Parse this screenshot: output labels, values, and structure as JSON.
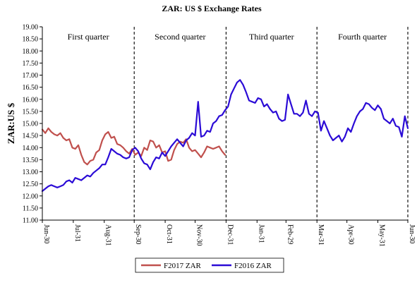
{
  "chart_data": {
    "type": "line",
    "title": "ZAR: US $ Exchange Rates",
    "ylabel": "ZAR:US $",
    "xlabel": "",
    "ylim": [
      11.0,
      19.0
    ],
    "ytick_step": 0.5,
    "x_axis": {
      "index_range": [
        0,
        365
      ],
      "ticks": [
        {
          "label": "Jun-30",
          "index": 0
        },
        {
          "label": "Jul-31",
          "index": 31
        },
        {
          "label": "Aug-31",
          "index": 62
        },
        {
          "label": "Sep-30",
          "index": 92
        },
        {
          "label": "Oct-31",
          "index": 123
        },
        {
          "label": "Nov-30",
          "index": 153
        },
        {
          "label": "Dec-31",
          "index": 184
        },
        {
          "label": "Jan-31",
          "index": 215
        },
        {
          "label": "Feb-29",
          "index": 244
        },
        {
          "label": "Mar-31",
          "index": 275
        },
        {
          "label": "Apr-30",
          "index": 305
        },
        {
          "label": "May-31",
          "index": 336
        },
        {
          "label": "Jun-30",
          "index": 366
        }
      ]
    },
    "quarters": [
      {
        "label": "First quarter",
        "start": 0,
        "end": 92
      },
      {
        "label": "Second quarter",
        "start": 92,
        "end": 184
      },
      {
        "label": "Third quarter",
        "start": 184,
        "end": 275
      },
      {
        "label": "Fourth quarter",
        "start": 275,
        "end": 366
      }
    ],
    "quarter_dividers": [
      92,
      184,
      275,
      366
    ],
    "grid": false,
    "legend_placement": "bottom-center",
    "series": [
      {
        "name": "F2017 ZAR",
        "color": "#c0504d",
        "x": [
          0,
          3,
          6,
          9,
          12,
          15,
          18,
          21,
          24,
          27,
          30,
          33,
          36,
          39,
          42,
          45,
          48,
          51,
          54,
          57,
          60,
          63,
          66,
          69,
          72,
          75,
          78,
          81,
          84,
          87,
          90,
          93,
          96,
          99,
          102,
          105,
          108,
          111,
          114,
          117,
          120,
          123,
          126,
          129,
          132,
          135,
          138,
          141,
          144,
          147,
          150,
          153,
          156,
          159,
          162,
          165,
          168,
          171,
          174,
          177,
          180,
          183
        ],
        "values": [
          14.75,
          14.6,
          14.8,
          14.65,
          14.55,
          14.5,
          14.6,
          14.4,
          14.3,
          14.35,
          14.0,
          13.95,
          14.1,
          13.7,
          13.4,
          13.3,
          13.45,
          13.5,
          13.8,
          13.9,
          14.3,
          14.55,
          14.65,
          14.4,
          14.45,
          14.15,
          14.1,
          14.0,
          13.85,
          13.75,
          13.95,
          13.7,
          13.8,
          13.65,
          14.0,
          13.9,
          14.3,
          14.25,
          14.0,
          14.1,
          13.8,
          13.85,
          13.45,
          13.5,
          13.9,
          14.15,
          14.25,
          14.2,
          14.35,
          14.0,
          13.85,
          13.9,
          13.75,
          13.6,
          13.8,
          14.05,
          14.0,
          13.95,
          14.0,
          14.05,
          13.85,
          13.7
        ]
      },
      {
        "name": "F2016 ZAR",
        "color": "#2b0bd6",
        "x": [
          0,
          3,
          6,
          9,
          12,
          15,
          18,
          21,
          24,
          27,
          30,
          33,
          36,
          39,
          42,
          45,
          48,
          51,
          54,
          57,
          60,
          63,
          66,
          69,
          72,
          75,
          78,
          81,
          84,
          87,
          90,
          93,
          96,
          99,
          102,
          105,
          108,
          111,
          114,
          117,
          120,
          123,
          126,
          129,
          132,
          135,
          138,
          141,
          144,
          147,
          150,
          153,
          156,
          159,
          162,
          165,
          168,
          171,
          174,
          177,
          180,
          183,
          186,
          189,
          192,
          195,
          198,
          201,
          204,
          207,
          210,
          213,
          216,
          219,
          222,
          225,
          228,
          231,
          234,
          237,
          240,
          243,
          246,
          249,
          252,
          255,
          258,
          261,
          264,
          267,
          270,
          273,
          276,
          279,
          282,
          285,
          288,
          291,
          294,
          297,
          300,
          303,
          306,
          309,
          312,
          315,
          318,
          321,
          324,
          327,
          330,
          333,
          336,
          339,
          342,
          345,
          348,
          351,
          354,
          357,
          360,
          363,
          366
        ],
        "values": [
          12.2,
          12.3,
          12.4,
          12.45,
          12.4,
          12.35,
          12.4,
          12.45,
          12.6,
          12.65,
          12.55,
          12.75,
          12.7,
          12.65,
          12.75,
          12.85,
          12.8,
          12.95,
          13.05,
          13.15,
          13.3,
          13.3,
          13.6,
          13.95,
          13.85,
          13.75,
          13.7,
          13.6,
          13.55,
          13.6,
          13.9,
          14.0,
          13.85,
          13.55,
          13.35,
          13.3,
          13.1,
          13.4,
          13.6,
          13.55,
          13.8,
          13.65,
          13.85,
          14.05,
          14.2,
          14.35,
          14.2,
          14.05,
          14.3,
          14.4,
          14.6,
          14.5,
          15.9,
          14.45,
          14.5,
          14.7,
          14.65,
          15.0,
          15.1,
          15.3,
          15.35,
          15.55,
          15.7,
          16.2,
          16.45,
          16.7,
          16.8,
          16.6,
          16.3,
          15.95,
          15.9,
          15.85,
          16.05,
          16.0,
          15.7,
          15.8,
          15.6,
          15.45,
          15.5,
          15.2,
          15.1,
          15.15,
          16.2,
          15.8,
          15.4,
          15.4,
          15.3,
          15.45,
          15.95,
          15.4,
          15.3,
          15.5,
          15.45,
          14.7,
          15.1,
          14.8,
          14.5,
          14.3,
          14.4,
          14.5,
          14.25,
          14.45,
          14.8,
          14.65,
          15.0,
          15.3,
          15.5,
          15.6,
          15.85,
          15.8,
          15.65,
          15.55,
          15.75,
          15.6,
          15.2,
          15.1,
          15.0,
          15.2,
          14.9,
          14.85,
          14.45,
          15.3,
          14.8
        ]
      }
    ]
  }
}
